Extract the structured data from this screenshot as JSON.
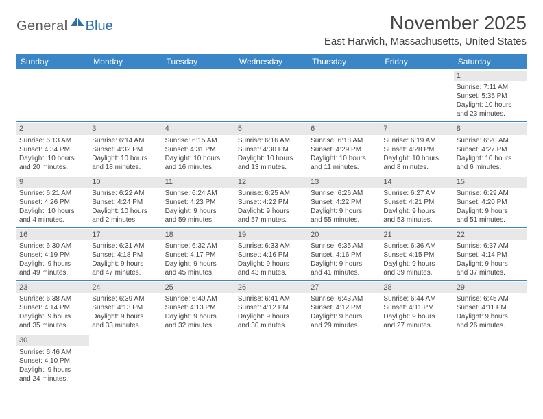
{
  "logo": {
    "general": "General",
    "blue": "Blue"
  },
  "header": {
    "title": "November 2025",
    "location": "East Harwich, Massachusetts, United States"
  },
  "colors": {
    "header_bg": "#3b86c6",
    "header_text": "#ffffff",
    "daynum_bg": "#e8e8e8",
    "border": "#3b86c6",
    "text": "#444444",
    "logo_gray": "#5a5a5a",
    "logo_blue": "#2f6fa8"
  },
  "weekdays": [
    "Sunday",
    "Monday",
    "Tuesday",
    "Wednesday",
    "Thursday",
    "Friday",
    "Saturday"
  ],
  "weeks": [
    [
      null,
      null,
      null,
      null,
      null,
      null,
      {
        "n": "1",
        "sr": "Sunrise: 7:11 AM",
        "ss": "Sunset: 5:35 PM",
        "d1": "Daylight: 10 hours",
        "d2": "and 23 minutes."
      }
    ],
    [
      {
        "n": "2",
        "sr": "Sunrise: 6:13 AM",
        "ss": "Sunset: 4:34 PM",
        "d1": "Daylight: 10 hours",
        "d2": "and 20 minutes."
      },
      {
        "n": "3",
        "sr": "Sunrise: 6:14 AM",
        "ss": "Sunset: 4:32 PM",
        "d1": "Daylight: 10 hours",
        "d2": "and 18 minutes."
      },
      {
        "n": "4",
        "sr": "Sunrise: 6:15 AM",
        "ss": "Sunset: 4:31 PM",
        "d1": "Daylight: 10 hours",
        "d2": "and 16 minutes."
      },
      {
        "n": "5",
        "sr": "Sunrise: 6:16 AM",
        "ss": "Sunset: 4:30 PM",
        "d1": "Daylight: 10 hours",
        "d2": "and 13 minutes."
      },
      {
        "n": "6",
        "sr": "Sunrise: 6:18 AM",
        "ss": "Sunset: 4:29 PM",
        "d1": "Daylight: 10 hours",
        "d2": "and 11 minutes."
      },
      {
        "n": "7",
        "sr": "Sunrise: 6:19 AM",
        "ss": "Sunset: 4:28 PM",
        "d1": "Daylight: 10 hours",
        "d2": "and 8 minutes."
      },
      {
        "n": "8",
        "sr": "Sunrise: 6:20 AM",
        "ss": "Sunset: 4:27 PM",
        "d1": "Daylight: 10 hours",
        "d2": "and 6 minutes."
      }
    ],
    [
      {
        "n": "9",
        "sr": "Sunrise: 6:21 AM",
        "ss": "Sunset: 4:26 PM",
        "d1": "Daylight: 10 hours",
        "d2": "and 4 minutes."
      },
      {
        "n": "10",
        "sr": "Sunrise: 6:22 AM",
        "ss": "Sunset: 4:24 PM",
        "d1": "Daylight: 10 hours",
        "d2": "and 2 minutes."
      },
      {
        "n": "11",
        "sr": "Sunrise: 6:24 AM",
        "ss": "Sunset: 4:23 PM",
        "d1": "Daylight: 9 hours",
        "d2": "and 59 minutes."
      },
      {
        "n": "12",
        "sr": "Sunrise: 6:25 AM",
        "ss": "Sunset: 4:22 PM",
        "d1": "Daylight: 9 hours",
        "d2": "and 57 minutes."
      },
      {
        "n": "13",
        "sr": "Sunrise: 6:26 AM",
        "ss": "Sunset: 4:22 PM",
        "d1": "Daylight: 9 hours",
        "d2": "and 55 minutes."
      },
      {
        "n": "14",
        "sr": "Sunrise: 6:27 AM",
        "ss": "Sunset: 4:21 PM",
        "d1": "Daylight: 9 hours",
        "d2": "and 53 minutes."
      },
      {
        "n": "15",
        "sr": "Sunrise: 6:29 AM",
        "ss": "Sunset: 4:20 PM",
        "d1": "Daylight: 9 hours",
        "d2": "and 51 minutes."
      }
    ],
    [
      {
        "n": "16",
        "sr": "Sunrise: 6:30 AM",
        "ss": "Sunset: 4:19 PM",
        "d1": "Daylight: 9 hours",
        "d2": "and 49 minutes."
      },
      {
        "n": "17",
        "sr": "Sunrise: 6:31 AM",
        "ss": "Sunset: 4:18 PM",
        "d1": "Daylight: 9 hours",
        "d2": "and 47 minutes."
      },
      {
        "n": "18",
        "sr": "Sunrise: 6:32 AM",
        "ss": "Sunset: 4:17 PM",
        "d1": "Daylight: 9 hours",
        "d2": "and 45 minutes."
      },
      {
        "n": "19",
        "sr": "Sunrise: 6:33 AM",
        "ss": "Sunset: 4:16 PM",
        "d1": "Daylight: 9 hours",
        "d2": "and 43 minutes."
      },
      {
        "n": "20",
        "sr": "Sunrise: 6:35 AM",
        "ss": "Sunset: 4:16 PM",
        "d1": "Daylight: 9 hours",
        "d2": "and 41 minutes."
      },
      {
        "n": "21",
        "sr": "Sunrise: 6:36 AM",
        "ss": "Sunset: 4:15 PM",
        "d1": "Daylight: 9 hours",
        "d2": "and 39 minutes."
      },
      {
        "n": "22",
        "sr": "Sunrise: 6:37 AM",
        "ss": "Sunset: 4:14 PM",
        "d1": "Daylight: 9 hours",
        "d2": "and 37 minutes."
      }
    ],
    [
      {
        "n": "23",
        "sr": "Sunrise: 6:38 AM",
        "ss": "Sunset: 4:14 PM",
        "d1": "Daylight: 9 hours",
        "d2": "and 35 minutes."
      },
      {
        "n": "24",
        "sr": "Sunrise: 6:39 AM",
        "ss": "Sunset: 4:13 PM",
        "d1": "Daylight: 9 hours",
        "d2": "and 33 minutes."
      },
      {
        "n": "25",
        "sr": "Sunrise: 6:40 AM",
        "ss": "Sunset: 4:13 PM",
        "d1": "Daylight: 9 hours",
        "d2": "and 32 minutes."
      },
      {
        "n": "26",
        "sr": "Sunrise: 6:41 AM",
        "ss": "Sunset: 4:12 PM",
        "d1": "Daylight: 9 hours",
        "d2": "and 30 minutes."
      },
      {
        "n": "27",
        "sr": "Sunrise: 6:43 AM",
        "ss": "Sunset: 4:12 PM",
        "d1": "Daylight: 9 hours",
        "d2": "and 29 minutes."
      },
      {
        "n": "28",
        "sr": "Sunrise: 6:44 AM",
        "ss": "Sunset: 4:11 PM",
        "d1": "Daylight: 9 hours",
        "d2": "and 27 minutes."
      },
      {
        "n": "29",
        "sr": "Sunrise: 6:45 AM",
        "ss": "Sunset: 4:11 PM",
        "d1": "Daylight: 9 hours",
        "d2": "and 26 minutes."
      }
    ],
    [
      {
        "n": "30",
        "sr": "Sunrise: 6:46 AM",
        "ss": "Sunset: 4:10 PM",
        "d1": "Daylight: 9 hours",
        "d2": "and 24 minutes."
      },
      null,
      null,
      null,
      null,
      null,
      null
    ]
  ]
}
